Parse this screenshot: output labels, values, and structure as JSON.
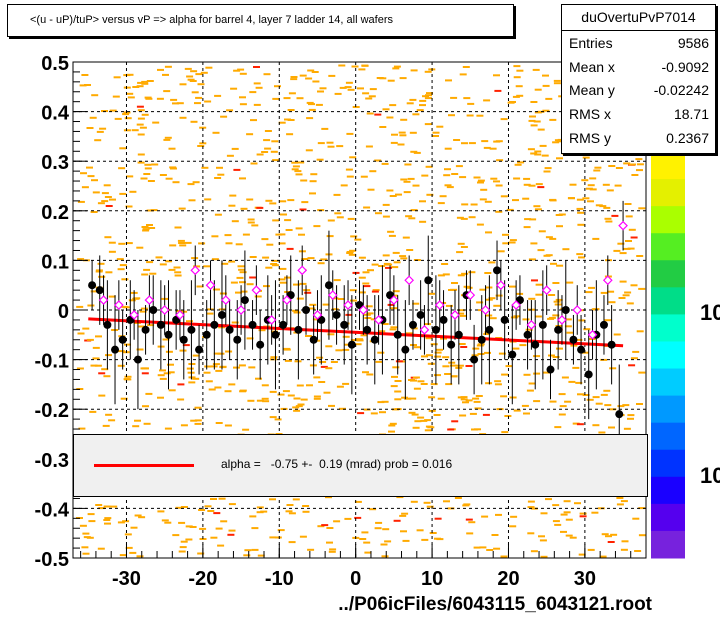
{
  "title": "<(u - uP)/tuP> versus   vP => alpha for barrel 4, layer 7 ladder 14, all wafers",
  "stats": {
    "name": "duOvertuPvP7014",
    "rows": [
      {
        "key": "Entries",
        "value": "9586"
      },
      {
        "key": "Mean x",
        "value": "-0.9092"
      },
      {
        "key": "Mean y",
        "value": "-0.02242"
      },
      {
        "key": "RMS x",
        "value": "18.71"
      },
      {
        "key": "RMS y",
        "value": "0.2367"
      }
    ]
  },
  "fit_legend": "alpha =   -0.75 +-  0.19 (mrad) prob = 0.016",
  "xlabel": "../P06icFiles/6043115_6043121.root",
  "colorbar_labels": [
    "10",
    "10"
  ],
  "colors": {
    "scatter_orange": "#ffaa00",
    "scatter_red": "#ff2200",
    "profile_black": "#000000",
    "profile_magenta": "#ff00ff",
    "fit_red": "#ff0000",
    "legend_bg": "#f0f0f0"
  },
  "chart_data": {
    "type": "scatter",
    "title": "<(u - uP)/tuP> versus   vP => alpha for barrel 4, layer 7 ladder 14, all wafers",
    "xlabel": "../P06icFiles/6043115_6043121.root",
    "ylabel": "",
    "xlim": [
      -37,
      38
    ],
    "ylim": [
      -0.5,
      0.5
    ],
    "x_ticks": [
      -30,
      -20,
      -10,
      0,
      10,
      20,
      30
    ],
    "y_ticks": [
      -0.5,
      -0.4,
      -0.3,
      -0.2,
      -0.1,
      0,
      0.1,
      0.2,
      0.3,
      0.4,
      0.5
    ],
    "x_tick_labels": [
      "-30",
      "-20",
      "-10",
      "0",
      "10",
      "20",
      "30"
    ],
    "y_tick_labels": [
      "-0.5",
      "-0.4",
      "-0.3",
      "-0.2",
      "-0.1",
      "0",
      "0.1",
      "0.2",
      "0.3",
      "0.4",
      "0.5"
    ],
    "grid": true,
    "fit_line": {
      "x": [
        -35,
        35
      ],
      "y": [
        -0.018,
        -0.072
      ]
    },
    "profile_black": {
      "x": [
        -34.5,
        -33.5,
        -32.5,
        -31.5,
        -30.5,
        -29.5,
        -28.5,
        -27.5,
        -26.5,
        -25.5,
        -24.5,
        -23.5,
        -22.5,
        -21.5,
        -20.5,
        -19.5,
        -18.5,
        -17.5,
        -16.5,
        -15.5,
        -14.5,
        -13.5,
        -12.5,
        -11.5,
        -10.5,
        -9.5,
        -8.5,
        -7.5,
        -6.5,
        -5.5,
        -4.5,
        -3.5,
        -2.5,
        -1.5,
        -0.5,
        0.5,
        1.5,
        2.5,
        3.5,
        4.5,
        5.5,
        6.5,
        7.5,
        8.5,
        9.5,
        10.5,
        11.5,
        12.5,
        13.5,
        14.5,
        15.5,
        16.5,
        17.5,
        18.5,
        19.5,
        20.5,
        21.5,
        22.5,
        23.5,
        24.5,
        25.5,
        26.5,
        27.5,
        28.5,
        29.5,
        30.5,
        31.5,
        32.5,
        33.5,
        34.5
      ],
      "y": [
        0.05,
        0.04,
        -0.03,
        -0.08,
        -0.06,
        -0.02,
        -0.1,
        -0.04,
        0.0,
        -0.03,
        -0.05,
        -0.02,
        -0.06,
        -0.04,
        -0.08,
        -0.05,
        -0.03,
        -0.01,
        -0.04,
        -0.06,
        0.02,
        -0.03,
        -0.07,
        -0.02,
        -0.05,
        -0.03,
        0.03,
        -0.04,
        0.0,
        -0.06,
        -0.02,
        0.05,
        -0.01,
        -0.03,
        -0.07,
        0.01,
        -0.04,
        -0.06,
        -0.02,
        0.03,
        -0.05,
        -0.08,
        -0.03,
        -0.01,
        0.06,
        -0.04,
        -0.02,
        -0.07,
        -0.05,
        0.03,
        -0.1,
        -0.06,
        -0.04,
        0.08,
        -0.02,
        -0.09,
        0.02,
        -0.05,
        -0.07,
        -0.03,
        -0.12,
        -0.04,
        0.0,
        -0.06,
        -0.08,
        -0.13,
        -0.05,
        -0.03,
        -0.07,
        -0.21
      ]
    },
    "profile_magenta": {
      "x": [
        -33,
        -31,
        -29,
        -27,
        -25,
        -23,
        -21,
        -19,
        -17,
        -15,
        -13,
        -11,
        -9,
        -7,
        -5,
        -3,
        -1,
        1,
        3,
        5,
        7,
        9,
        11,
        13,
        15,
        17,
        19,
        21,
        23,
        25,
        27,
        29,
        31,
        33,
        35
      ],
      "y": [
        0.02,
        0.01,
        -0.01,
        0.02,
        0.0,
        -0.01,
        0.08,
        0.05,
        0.02,
        0.0,
        0.04,
        -0.02,
        0.02,
        0.08,
        -0.01,
        0.03,
        0.01,
        0.0,
        -0.02,
        0.02,
        0.06,
        -0.04,
        0.01,
        -0.01,
        0.03,
        0.0,
        0.05,
        0.01,
        -0.03,
        0.04,
        -0.02,
        0.0,
        -0.05,
        0.06,
        0.17
      ]
    }
  }
}
